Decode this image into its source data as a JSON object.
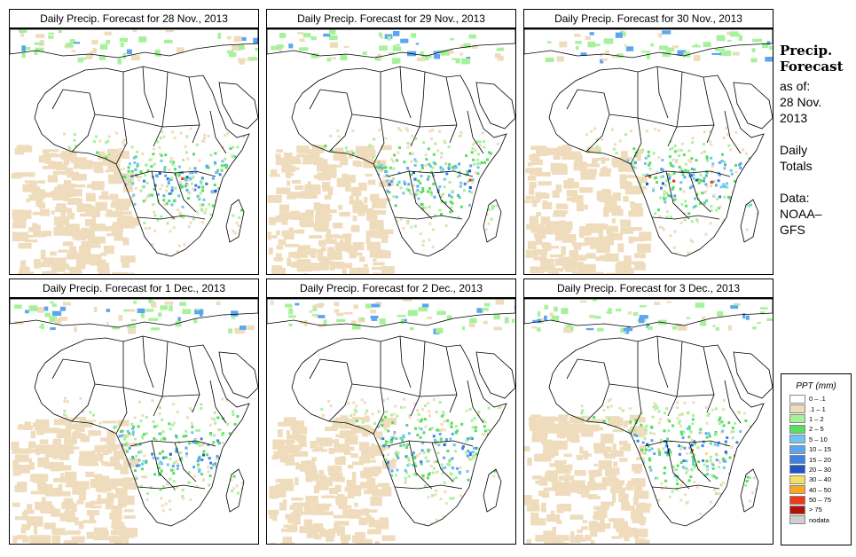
{
  "panels": [
    {
      "title": "Daily Precip. Forecast for  28 Nov., 2013",
      "seed": 11
    },
    {
      "title": "Daily Precip. Forecast for  29 Nov., 2013",
      "seed": 23
    },
    {
      "title": "Daily Precip. Forecast for  30 Nov., 2013",
      "seed": 37
    },
    {
      "title": "Daily Precip. Forecast for  1 Dec., 2013",
      "seed": 41
    },
    {
      "title": "Daily Precip. Forecast for  2 Dec., 2013",
      "seed": 53
    },
    {
      "title": "Daily Precip. Forecast for  3 Dec., 2013",
      "seed": 67
    }
  ],
  "side": {
    "title_line1": "Precip.",
    "title_line2": "Forecast",
    "asof_line1": "as of:",
    "asof_line2": "28 Nov.",
    "asof_line3": "2013",
    "daily_line1": "Daily",
    "daily_line2": "Totals",
    "data_line1": "Data:",
    "data_line2": "NOAA–",
    "data_line3": "GFS"
  },
  "legend": {
    "title": "PPT (mm)",
    "items": [
      {
        "label": "0 – .1",
        "color": "#ffffff"
      },
      {
        "label": ".1 – 1",
        "color": "#efdcbc"
      },
      {
        "label": "1 – 2",
        "color": "#a6f29a"
      },
      {
        "label": "2 – 5",
        "color": "#59dd63"
      },
      {
        "label": "5 – 10",
        "color": "#6fc4f2"
      },
      {
        "label": "10 – 15",
        "color": "#5aa6ef"
      },
      {
        "label": "15 – 20",
        "color": "#3c82e6"
      },
      {
        "label": "20 – 30",
        "color": "#1f53c8"
      },
      {
        "label": "30 – 40",
        "color": "#f6e064"
      },
      {
        "label": "40 – 50",
        "color": "#f6a923"
      },
      {
        "label": "50 – 75",
        "color": "#ee3a16"
      },
      {
        "label": "> 75",
        "color": "#b11208"
      },
      {
        "label": "nodata",
        "color": "#cfcfcf"
      }
    ]
  }
}
